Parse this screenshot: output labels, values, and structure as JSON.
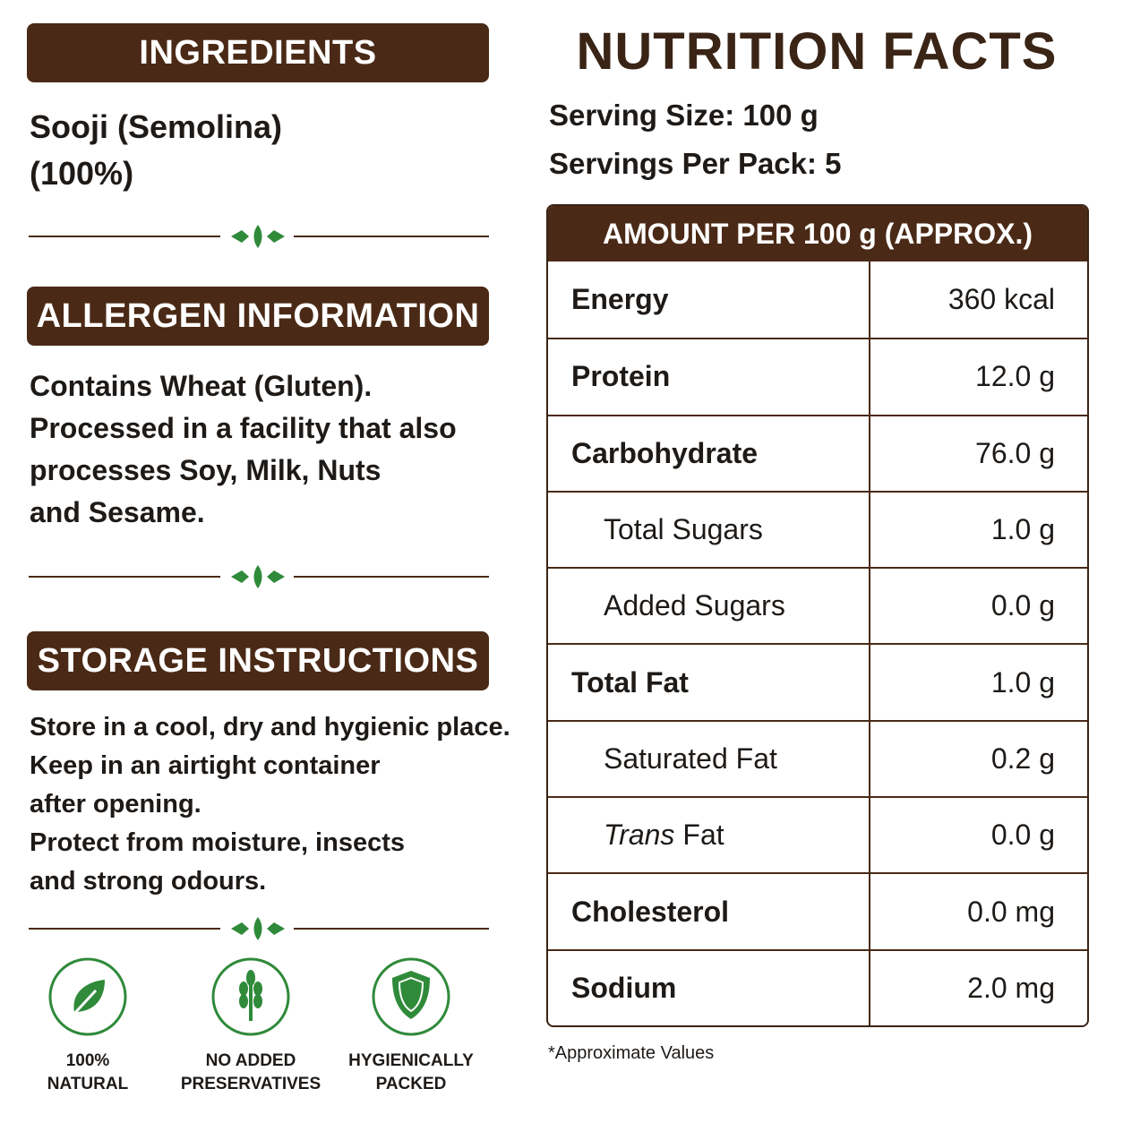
{
  "ingredients": {
    "heading": "INGREDIENTS",
    "lines": [
      "Sooji (Semolina)",
      "(100%)"
    ]
  },
  "allergen": {
    "heading": "ALLERGEN INFORMATION",
    "lines": [
      "Contains Wheat (Gluten).",
      "Processed in a facility that also",
      "processes Soy, Milk, Nuts",
      "and Sesame."
    ]
  },
  "storage": {
    "heading": "STORAGE INSTRUCTIONS",
    "lines": [
      "Store in a cool, dry and hygienic place.",
      "Keep in an airtight container",
      "after opening.",
      "Protect from moisture, insects",
      "and strong odours."
    ]
  },
  "badges": [
    {
      "lines": [
        "100%",
        "NATURAL"
      ]
    },
    {
      "lines": [
        "NO ADDED",
        "PRESERVATIVES"
      ]
    },
    {
      "lines": [
        "HYGIENICALLY",
        "PACKED"
      ]
    }
  ],
  "nutrition": {
    "title": "NUTRITION FACTS",
    "serving_size": "Serving Size: 100 g",
    "servings_per_pack": "Servings Per Pack: 5",
    "table_header": "AMOUNT PER 100 g (APPROX.)",
    "rows": [
      {
        "label": "Energy",
        "value": "360 kcal"
      },
      {
        "label": "Protein",
        "value": "12.0 g"
      },
      {
        "label": "Carbohydrate",
        "value": "76.0 g"
      },
      {
        "label": "Total Sugars",
        "value": "1.0 g",
        "sub": true
      },
      {
        "label": "Added Sugars",
        "value": "0.0 g",
        "sub": true
      },
      {
        "label": "Total Fat",
        "value": "1.0 g"
      },
      {
        "label": "Saturated Fat",
        "value": "0.2 g",
        "sub": true
      },
      {
        "label_italic": "Trans",
        "label": "Fat",
        "value": "0.0 g",
        "sub": true
      },
      {
        "label": "Cholesterol",
        "value": "0.0 mg"
      },
      {
        "label": "Sodium",
        "value": "2.0 mg"
      }
    ],
    "footnote": "*Approximate Values"
  }
}
